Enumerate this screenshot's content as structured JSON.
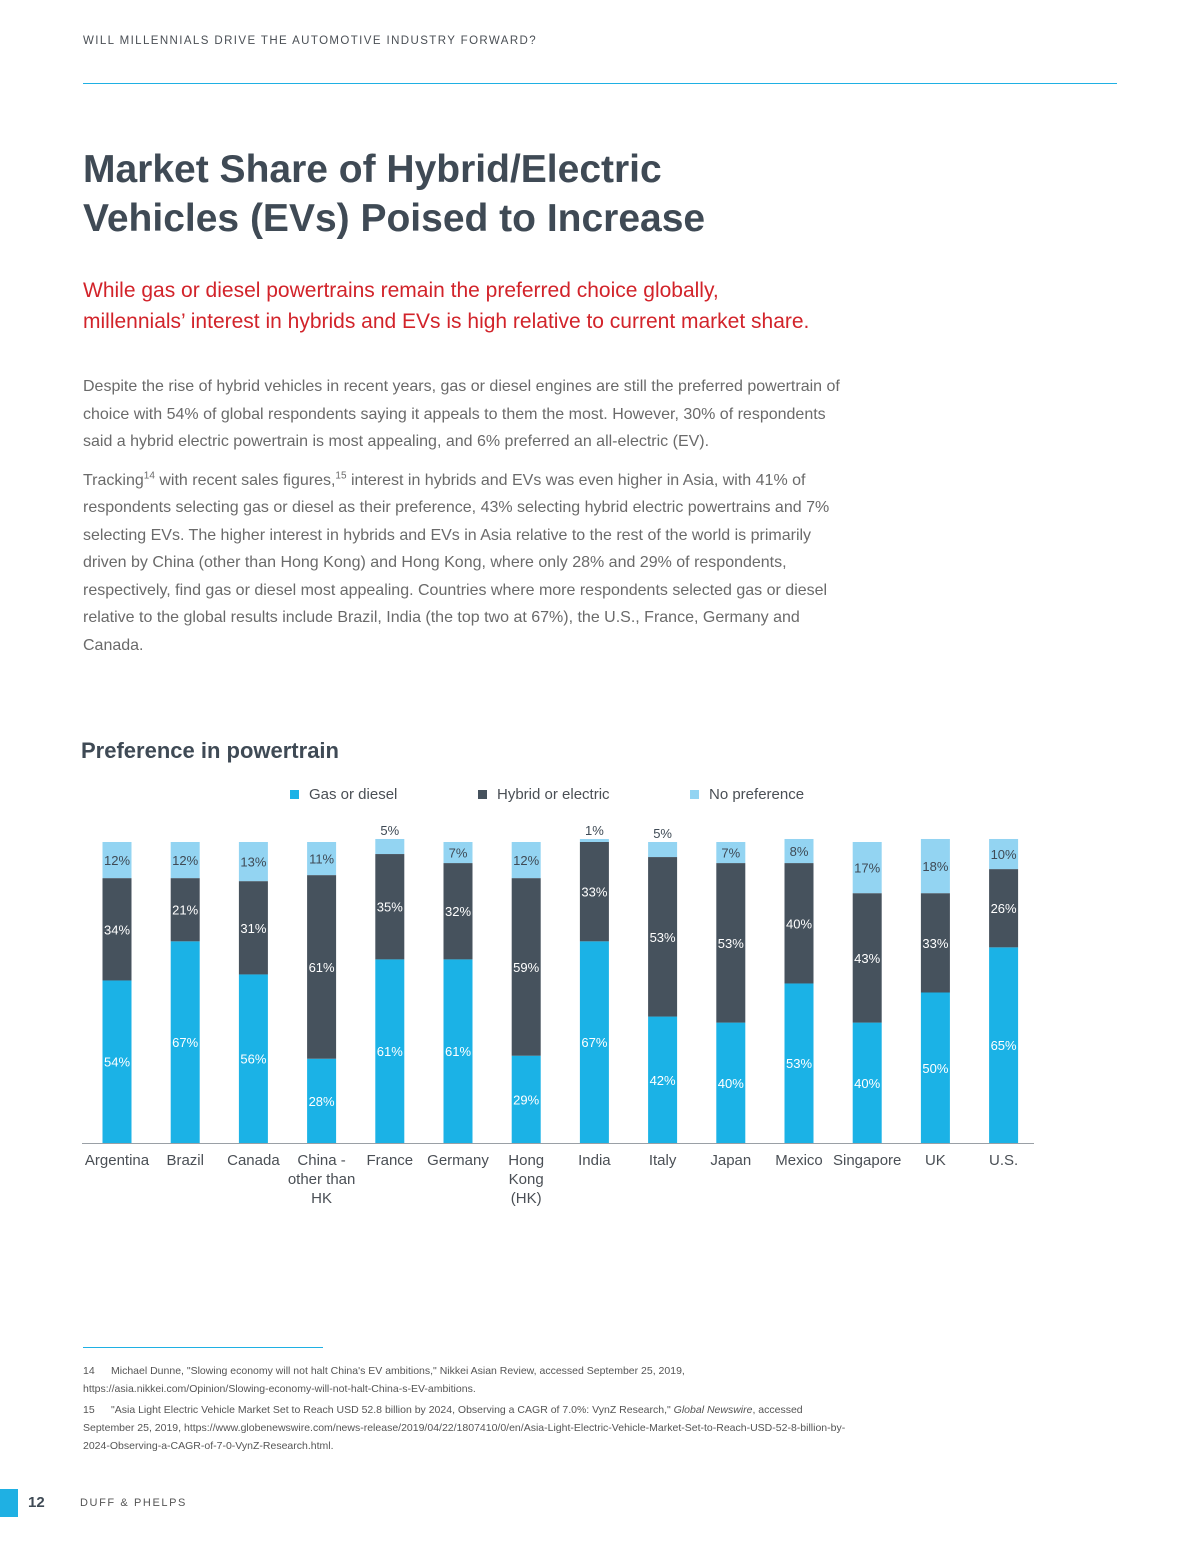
{
  "header": {
    "running_title": "WILL MILLENNIALS DRIVE THE AUTOMOTIVE INDUSTRY FORWARD?"
  },
  "title": {
    "line1": "Market Share of Hybrid/Electric",
    "line2": "Vehicles (EVs) Poised to Increase"
  },
  "subhead": {
    "line1": "While gas or diesel powertrains remain the preferred choice globally,",
    "line2": "millennials’ interest in hybrids and EVs is high relative to current market share."
  },
  "body": {
    "p1": "Despite the rise of hybrid vehicles in recent years, gas or diesel engines are still the preferred powertrain of choice with 54% of global respondents saying it appeals to them the most. However, 30% of respondents said a hybrid electric powertrain is most appealing, and 6% preferred an all-electric (EV).",
    "p2_a": "Tracking",
    "p2_sup1": "14",
    "p2_b": " with recent sales figures,",
    "p2_sup2": "15",
    "p2_c": " interest in hybrids and EVs was even higher in Asia, with 41% of respondents selecting gas or diesel as their preference, 43% selecting hybrid electric powertrains and 7% selecting EVs. The higher interest in hybrids and EVs in Asia relative to the rest of the world is primarily driven by China (other than Hong Kong) and Hong Kong, where only 28% and 29% of respondents, respectively, find gas or diesel most appealing. Countries where more respondents selected gas or diesel relative to the global results include Brazil, India (the top two at 67%), the U.S., France, Germany and Canada."
  },
  "chart_data": {
    "type": "bar",
    "stacked": true,
    "title": "Preference in powertrain",
    "legend_position": "top",
    "categories": [
      [
        "Argentina"
      ],
      [
        "Brazil"
      ],
      [
        "Canada"
      ],
      [
        "China -",
        "other than",
        "HK"
      ],
      [
        "France"
      ],
      [
        "Germany"
      ],
      [
        "Hong",
        "Kong",
        "(HK)"
      ],
      [
        "India"
      ],
      [
        "Italy"
      ],
      [
        "Japan"
      ],
      [
        "Mexico"
      ],
      [
        "Singapore"
      ],
      [
        "UK"
      ],
      [
        "U.S."
      ]
    ],
    "series": [
      {
        "name": "Gas or diesel",
        "color": "#1bb2e6",
        "values": [
          54,
          67,
          56,
          28,
          61,
          61,
          29,
          67,
          42,
          40,
          53,
          40,
          50,
          65
        ]
      },
      {
        "name": "Hybrid or electric",
        "color": "#46525d",
        "values": [
          34,
          21,
          31,
          61,
          35,
          32,
          59,
          33,
          53,
          53,
          40,
          43,
          33,
          26
        ]
      },
      {
        "name": "No preference",
        "color": "#93d4f2",
        "values": [
          12,
          12,
          13,
          11,
          5,
          7,
          12,
          1,
          5,
          7,
          8,
          17,
          18,
          10
        ]
      }
    ],
    "value_suffix": "%",
    "ylim": [
      0,
      100
    ],
    "xlabel": "",
    "ylabel": "",
    "grid": false
  },
  "footnotes": [
    {
      "num": "14",
      "text": "Michael Dunne, \"Slowing economy will not halt China's EV ambitions,\" Nikkei Asian Review, accessed September 25, 2019, https://asia.nikkei.com/Opinion/Slowing-economy-will-not-halt-China-s-EV-ambitions."
    },
    {
      "num": "15",
      "text_a": "\"Asia Light Electric Vehicle Market Set to Reach USD 52.8 billion by 2024, Observing a CAGR of 7.0%: VynZ Research,\" ",
      "text_em": "Global Newswire",
      "text_b": ", accessed September 25, 2019, https://www.globenewswire.com/news-release/2019/04/22/1807410/0/en/Asia-Light-Electric-Vehicle-Market-Set-to-Reach-USD-52-8-billion-by-2024-Observing-a-CAGR-of-7-0-VynZ-Research.html."
    }
  ],
  "footer": {
    "page_number": "12",
    "brand": "DUFF & PHELPS"
  }
}
